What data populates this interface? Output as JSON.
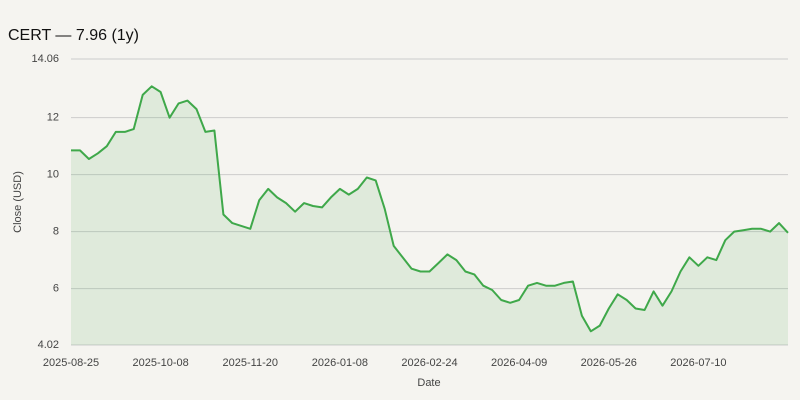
{
  "chart_data": {
    "type": "line",
    "title": "CERT — 7.96 (1y)",
    "x_label": "Date",
    "y_label": "Close (USD)",
    "categories": [
      "2025-08-25",
      null,
      null,
      null,
      null,
      null,
      null,
      null,
      null,
      null,
      "2025-10-08",
      null,
      null,
      null,
      null,
      null,
      null,
      null,
      null,
      null,
      "2025-11-20",
      null,
      null,
      null,
      null,
      null,
      null,
      null,
      null,
      null,
      "2026-01-08",
      null,
      null,
      null,
      null,
      null,
      null,
      null,
      null,
      null,
      "2026-02-24",
      null,
      null,
      null,
      null,
      null,
      null,
      null,
      null,
      null,
      "2026-04-09",
      null,
      null,
      null,
      null,
      null,
      null,
      null,
      null,
      null,
      "2026-05-26",
      null,
      null,
      null,
      null,
      null,
      null,
      null,
      null,
      null,
      "2026-07-10",
      null,
      null,
      null,
      null,
      null,
      null,
      null,
      null,
      null,
      null
    ],
    "series": [
      {
        "name": "CERT",
        "color": "#3fa84a",
        "values": [
          10.85,
          10.85,
          10.55,
          10.75,
          11.0,
          11.5,
          11.5,
          11.6,
          12.8,
          13.1,
          12.9,
          12.0,
          12.5,
          12.6,
          12.3,
          11.5,
          11.55,
          8.6,
          8.3,
          8.2,
          8.1,
          9.1,
          9.5,
          9.2,
          9.0,
          8.7,
          9.0,
          8.9,
          8.85,
          9.2,
          9.5,
          9.3,
          9.5,
          9.9,
          9.8,
          8.8,
          7.5,
          7.1,
          6.7,
          6.6,
          6.6,
          6.9,
          7.2,
          7.0,
          6.6,
          6.5,
          6.1,
          5.95,
          5.6,
          5.5,
          5.6,
          6.1,
          6.2,
          6.1,
          6.1,
          6.2,
          6.25,
          5.05,
          4.5,
          4.7,
          5.3,
          5.8,
          5.6,
          5.3,
          5.25,
          5.9,
          5.4,
          5.9,
          6.6,
          7.1,
          6.8,
          7.1,
          7.0,
          7.7,
          8.0,
          8.05,
          8.1,
          8.1,
          8.0,
          8.3,
          7.96
        ]
      }
    ],
    "ylim": [
      4.02,
      14.06
    ],
    "yticks": [
      4.02,
      6,
      8,
      10,
      12,
      14.06
    ],
    "grid": true
  }
}
